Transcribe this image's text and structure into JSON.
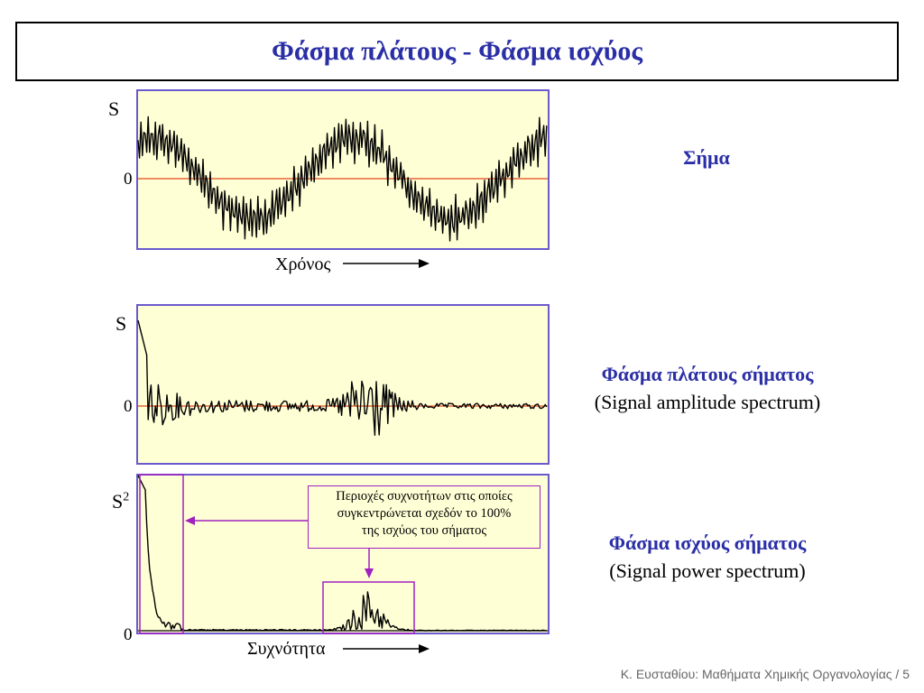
{
  "title": "Φάσμα πλάτους - Φάσμα ισχύος",
  "signal_panel": {
    "y_label": "S",
    "zero_label": "0",
    "x_label": "Χρόνος",
    "side_title": "Σήμα"
  },
  "amplitude_panel": {
    "y_label": "S",
    "zero_label": "0",
    "side_title": "Φάσμα πλάτους σήματος",
    "side_subtitle": "(Signal amplitude spectrum)"
  },
  "power_panel": {
    "y_label_base": "S",
    "y_label_sup": "2",
    "zero_label": "0",
    "x_label": "Συχνότητα",
    "side_title": "Φάσμα ισχύος σήματος",
    "side_subtitle": "(Signal power spectrum)",
    "callout_line1": "Περιοχές συχνοτήτων στις οποίες",
    "callout_line2": "συγκεντρώνεται σχεδόν το 100%",
    "callout_line3": "της ισχύος του σήματος"
  },
  "footer": "Κ. Ευσταθίου: Μαθήματα Χημικής Οργανολογίας / 5",
  "colors": {
    "title": "#2b2fa6",
    "panel_bg": "#ffffd6",
    "panel_border": "#6a5acd",
    "zero_line": "#e0471a",
    "highlight": "#a020c0",
    "trace": "#000000"
  }
}
